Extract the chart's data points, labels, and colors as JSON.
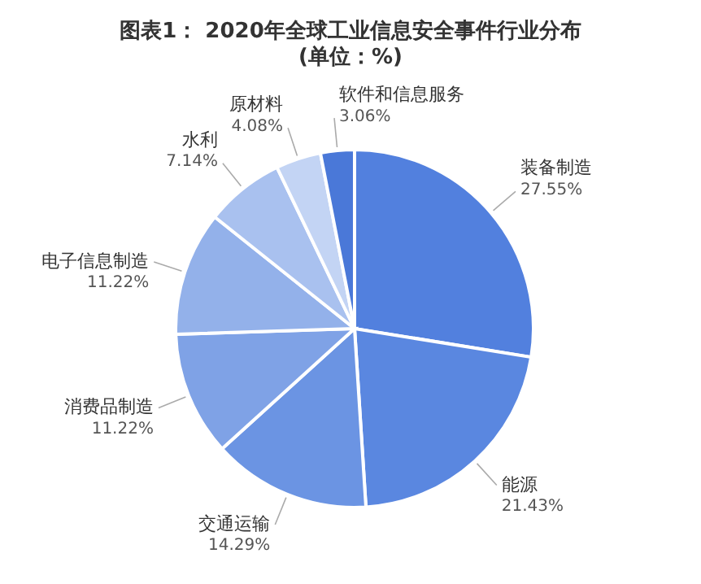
{
  "chart_data": {
    "type": "pie",
    "title": "图表1： 2020年全球工业信息安全事件行业分布(单位：%)",
    "categories": [
      "装备制造",
      "能源",
      "交通运输",
      "消费品制造",
      "电子信息制造",
      "水利",
      "原材料",
      "软件和信息服务"
    ],
    "values": [
      27.55,
      21.43,
      14.29,
      11.22,
      11.22,
      7.14,
      4.08,
      3.06
    ],
    "value_labels": [
      "27.55%",
      "21.43%",
      "14.29%",
      "11.22%",
      "11.22%",
      "7.14%",
      "4.08%",
      "3.06%"
    ],
    "colors": [
      "#5280de",
      "#5a87e0",
      "#6b94e3",
      "#7fa2e6",
      "#93b1ea",
      "#a9c1ef",
      "#c3d4f4",
      "#4a78d8"
    ]
  }
}
